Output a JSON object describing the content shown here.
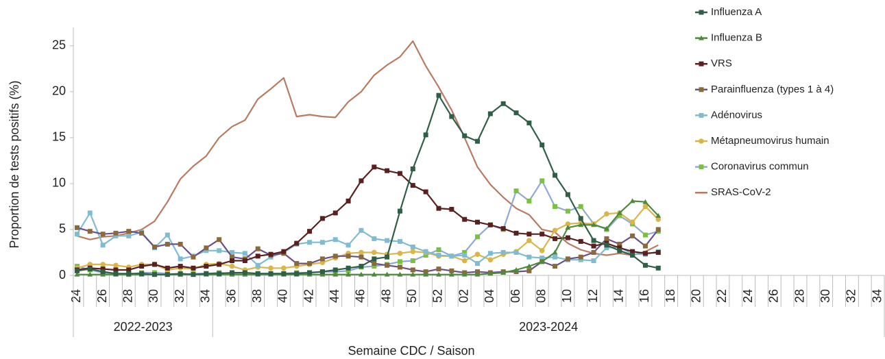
{
  "chart_data": {
    "type": "line",
    "y_label": "Proportion de tests positifs (%)",
    "x_label": "Semaine CDC / Saison",
    "ylim": [
      0,
      27
    ],
    "yticks": [
      0,
      5,
      10,
      15,
      20,
      25
    ],
    "grid": false,
    "legend": "right",
    "categories": [
      "24",
      null,
      "26",
      null,
      "28",
      null,
      "30",
      null,
      "32",
      null,
      "34",
      null,
      "36",
      null,
      "38",
      null,
      "40",
      null,
      "42",
      null,
      "44",
      null,
      "46",
      null,
      "48",
      null,
      "50",
      null,
      "52",
      null,
      "02",
      null,
      "04",
      null,
      "06",
      null,
      "08",
      null,
      "10",
      null,
      "12",
      null,
      "14",
      null,
      "16",
      null,
      "18",
      null,
      "20",
      null,
      "22",
      null,
      "24",
      null,
      "26",
      null,
      "28",
      null,
      "30",
      null,
      "32",
      null,
      "34"
    ],
    "seasons": [
      {
        "label": "2022-2023",
        "weeks": 11
      },
      {
        "label": "2023-2024",
        "weeks": 52
      }
    ],
    "series": [
      {
        "name": "Influenza A",
        "color": "#2f5f47",
        "marker": "square",
        "marker_color": "#2f5f47",
        "values": [
          0.5,
          0.7,
          0.4,
          0.2,
          0.2,
          0.2,
          0.1,
          0.1,
          0.2,
          0.1,
          0.2,
          0.2,
          0.3,
          0.3,
          0.2,
          0.2,
          0.2,
          0.2,
          0.3,
          0.4,
          0.6,
          0.8,
          1.0,
          1.8,
          2.0,
          7.0,
          11.6,
          15.3,
          19.6,
          17.3,
          15.2,
          14.6,
          17.6,
          18.7,
          17.7,
          16.6,
          14.2,
          10.9,
          8.8,
          6.2,
          3.8,
          3.3,
          2.7,
          2.2,
          1.1,
          0.8,
          null,
          null,
          null,
          null,
          null,
          null,
          null,
          null,
          null,
          null,
          null,
          null,
          null,
          null,
          null,
          null,
          null
        ]
      },
      {
        "name": "Influenza B",
        "color": "#4e8a3e",
        "marker": "triangle",
        "marker_color": "#4e8a3e",
        "values": [
          0.1,
          0.1,
          0.1,
          0.1,
          0.1,
          0.1,
          0.1,
          0.1,
          0.1,
          0.1,
          0.1,
          0.1,
          0.1,
          0.1,
          0.1,
          0.1,
          0.1,
          0.1,
          0.1,
          0.1,
          0.1,
          0.1,
          0.1,
          0.1,
          0.1,
          0.1,
          0.1,
          0.1,
          0.1,
          0.1,
          0.1,
          0.1,
          0.2,
          0.3,
          0.6,
          1.0,
          1.5,
          2.5,
          5.2,
          5.5,
          5.5,
          5.1,
          6.8,
          8.1,
          8.0,
          6.5,
          null,
          null,
          null,
          null,
          null,
          null,
          null,
          null,
          null,
          null,
          null,
          null,
          null,
          null,
          null,
          null,
          null
        ]
      },
      {
        "name": "VRS",
        "color": "#5a1f1f",
        "marker": "square",
        "marker_color": "#5a1f1f",
        "values": [
          0.6,
          0.8,
          0.7,
          0.6,
          0.6,
          1.0,
          1.2,
          0.8,
          1.0,
          0.8,
          1.0,
          1.2,
          1.6,
          1.6,
          2.1,
          2.3,
          2.6,
          3.5,
          4.8,
          6.2,
          6.8,
          8.1,
          10.3,
          11.8,
          11.4,
          11.1,
          9.8,
          9.1,
          7.3,
          7.2,
          6.1,
          5.8,
          5.5,
          5.1,
          4.6,
          4.5,
          4.5,
          4.0,
          4.1,
          3.7,
          3.2,
          3.5,
          3.0,
          2.6,
          2.4,
          2.5,
          null,
          null,
          null,
          null,
          null,
          null,
          null,
          null,
          null,
          null,
          null,
          null,
          null,
          null,
          null,
          null,
          null
        ]
      },
      {
        "name": "Parainfluenza (types 1 à 4)",
        "color": "#6b4f8a",
        "marker": "square",
        "marker_color": "#8a6a3a",
        "values": [
          5.2,
          4.8,
          4.5,
          4.6,
          4.8,
          4.6,
          3.1,
          3.4,
          3.4,
          2.0,
          3.0,
          3.9,
          2.0,
          1.8,
          2.9,
          2.2,
          2.4,
          1.3,
          1.3,
          1.8,
          2.1,
          2.1,
          2.0,
          1.3,
          1.1,
          0.9,
          0.6,
          0.4,
          0.7,
          0.5,
          0.3,
          0.4,
          0.3,
          0.4,
          0.4,
          0.5,
          1.5,
          1.0,
          1.8,
          2.0,
          2.5,
          4.0,
          3.4,
          4.3,
          3.2,
          5.0,
          null,
          null,
          null,
          null,
          null,
          null,
          null,
          null,
          null,
          null,
          null,
          null,
          null,
          null,
          null,
          null,
          null
        ]
      },
      {
        "name": "Adénovirus",
        "color": "#7fbcd2",
        "marker": "square",
        "marker_color": "#7fbcd2",
        "values": [
          4.5,
          6.8,
          3.3,
          4.3,
          4.3,
          4.7,
          3.0,
          4.4,
          1.8,
          2.1,
          2.7,
          2.7,
          2.5,
          2.4,
          1.1,
          2.0,
          2.5,
          3.4,
          3.6,
          3.6,
          3.9,
          3.3,
          4.9,
          4.0,
          3.8,
          3.7,
          3.1,
          2.6,
          2.2,
          2.1,
          2.2,
          1.3,
          2.4,
          2.5,
          2.5,
          2.0,
          1.9,
          2.0,
          1.7,
          1.7,
          1.6,
          3.0,
          3.1,
          2.3,
          2.3,
          2.6,
          null,
          null,
          null,
          null,
          null,
          null,
          null,
          null,
          null,
          null,
          null,
          null,
          null,
          null,
          null,
          null,
          null
        ]
      },
      {
        "name": "Métapneumovirus humain",
        "color": "#d9b54a",
        "marker": "circle",
        "marker_color": "#d9b54a",
        "values": [
          0.8,
          1.2,
          1.2,
          1.1,
          0.9,
          1.2,
          1.2,
          0.6,
          0.8,
          0.7,
          1.2,
          1.3,
          1.0,
          0.6,
          0.9,
          0.8,
          0.8,
          1.0,
          1.2,
          1.4,
          1.9,
          2.4,
          2.5,
          2.5,
          2.3,
          2.4,
          2.6,
          2.5,
          2.1,
          2.1,
          1.6,
          2.3,
          1.7,
          2.3,
          2.6,
          3.8,
          2.7,
          4.9,
          5.6,
          5.7,
          5.6,
          6.7,
          6.8,
          5.8,
          7.5,
          6.1,
          null,
          null,
          null,
          null,
          null,
          null,
          null,
          null,
          null,
          null,
          null,
          null,
          null,
          null,
          null,
          null,
          null
        ]
      },
      {
        "name": "Coronavirus commun",
        "color": "#8fa9d6",
        "marker": "square",
        "marker_color": "#7ac142",
        "values": [
          1.0,
          0.6,
          0.3,
          0.2,
          0.1,
          0.3,
          0.3,
          0.2,
          0.1,
          0.2,
          0.2,
          0.3,
          0.2,
          0.3,
          0.2,
          0.2,
          0.2,
          0.3,
          0.3,
          0.4,
          0.4,
          0.5,
          0.9,
          1.0,
          1.2,
          1.5,
          1.6,
          2.2,
          2.8,
          2.1,
          2.5,
          4.2,
          5.5,
          5.0,
          9.2,
          8.1,
          10.3,
          7.5,
          7.0,
          7.5,
          5.6,
          5.0,
          6.5,
          5.6,
          4.4,
          4.8,
          null,
          null,
          null,
          null,
          null,
          null,
          null,
          null,
          null,
          null,
          null,
          null,
          null,
          null,
          null,
          null,
          null
        ]
      },
      {
        "name": "SRAS-CoV-2",
        "color": "#b97a60",
        "marker": "none",
        "marker_color": "#b97a60",
        "values": [
          4.3,
          3.9,
          4.2,
          4.3,
          4.6,
          5.0,
          5.9,
          8.0,
          10.5,
          11.9,
          13.0,
          15.0,
          16.2,
          16.9,
          19.2,
          20.3,
          21.5,
          17.3,
          17.5,
          17.3,
          17.2,
          18.9,
          20.0,
          21.8,
          22.9,
          23.8,
          25.5,
          22.8,
          20.5,
          18.0,
          15.0,
          11.8,
          9.9,
          8.5,
          7.3,
          6.6,
          5.0,
          4.7,
          3.5,
          2.8,
          2.4,
          2.2,
          2.4,
          2.2,
          2.6,
          3.3,
          null,
          null,
          null,
          null,
          null,
          null,
          null,
          null,
          null,
          null,
          null,
          null,
          null,
          null,
          null,
          null,
          null
        ]
      }
    ]
  }
}
